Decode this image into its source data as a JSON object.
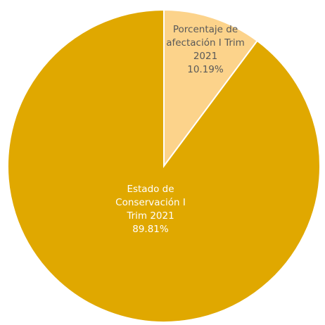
{
  "chart_data": {
    "type": "pie",
    "title": "",
    "slices": [
      {
        "label_lines": [
          "Porcentaje de",
          "afectación I Trim",
          "2021"
        ],
        "value": 10.19,
        "value_label": "10.19%",
        "color": "#FCD38B",
        "label_color": "#595959"
      },
      {
        "label_lines": [
          "Estado de",
          "Conservación I",
          "Trim 2021"
        ],
        "value": 89.81,
        "value_label": "89.81%",
        "color": "#E0A800",
        "label_color": "#FFFFFF"
      }
    ],
    "start_angle_deg": 0,
    "direction": "clockwise",
    "slice_border_color": "#FFFFFF"
  }
}
